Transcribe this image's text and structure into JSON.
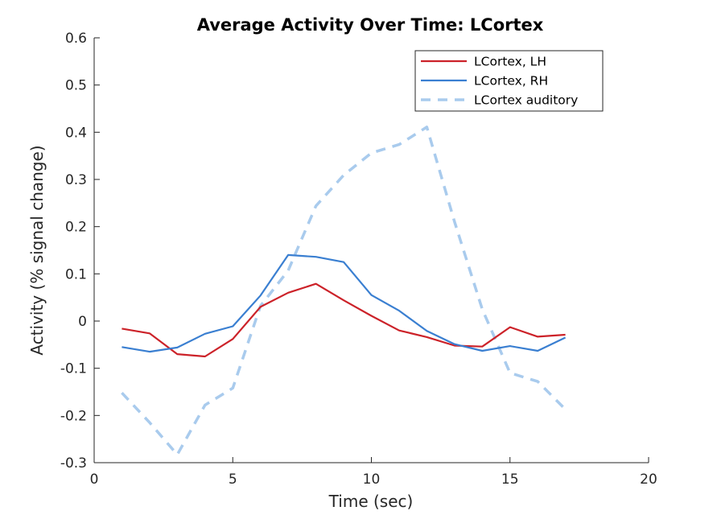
{
  "chart_data": {
    "type": "line",
    "title": "Average Activity Over Time: LCortex",
    "xlabel": "Time (sec)",
    "ylabel": "Activity (% signal change)",
    "xlim": [
      0,
      20
    ],
    "ylim": [
      -0.3,
      0.6
    ],
    "xticks": [
      0,
      5,
      10,
      15,
      20
    ],
    "xtick_labels": [
      "0",
      "5",
      "10",
      "15",
      "20"
    ],
    "yticks": [
      -0.3,
      -0.2,
      -0.1,
      0,
      0.1,
      0.2,
      0.3,
      0.4,
      0.5,
      0.6
    ],
    "ytick_labels": [
      "-0.3",
      "-0.2",
      "-0.1",
      "0",
      "0.1",
      "0.2",
      "0.3",
      "0.4",
      "0.5",
      "0.6"
    ],
    "grid": false,
    "legend_position": "top-right",
    "x": [
      1,
      2,
      3,
      4,
      5,
      6,
      7,
      8,
      9,
      10,
      11,
      12,
      13,
      14,
      15,
      16,
      17
    ],
    "series": [
      {
        "name": "LCortex, LH",
        "color": "#cc2229",
        "dash": "solid",
        "values": [
          -0.016,
          -0.026,
          -0.07,
          -0.075,
          -0.038,
          0.03,
          0.06,
          0.079,
          0.044,
          0.011,
          -0.02,
          -0.034,
          -0.052,
          -0.054,
          -0.013,
          -0.033,
          -0.029
        ]
      },
      {
        "name": "LCortex, RH",
        "color": "#3a7fd1",
        "dash": "solid",
        "values": [
          -0.055,
          -0.065,
          -0.056,
          -0.027,
          -0.011,
          0.054,
          0.14,
          0.136,
          0.125,
          0.055,
          0.022,
          -0.021,
          -0.049,
          -0.063,
          -0.053,
          -0.063,
          -0.035
        ]
      },
      {
        "name": "LCortex auditory",
        "color": "#a9cbed",
        "dash": "dashed",
        "values": [
          -0.152,
          -0.215,
          -0.283,
          -0.178,
          -0.142,
          0.032,
          0.107,
          0.244,
          0.309,
          0.356,
          0.374,
          0.411,
          0.21,
          0.025,
          -0.11,
          -0.128,
          -0.187
        ]
      }
    ]
  }
}
